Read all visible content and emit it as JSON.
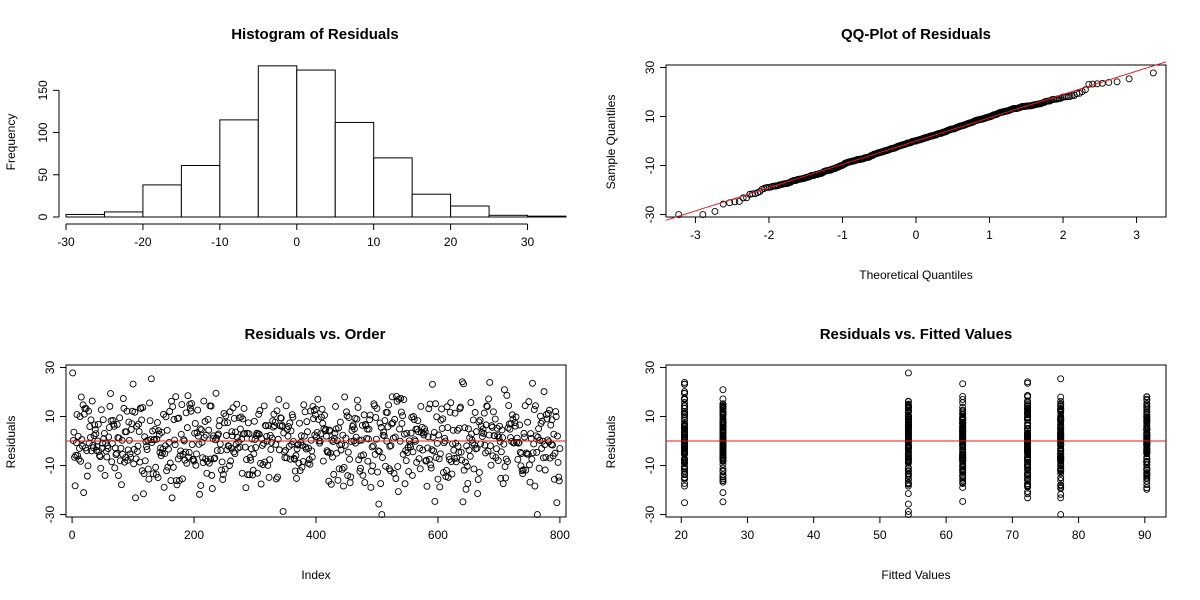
{
  "chart_data": [
    {
      "type": "bar",
      "title": "Histogram of Residuals",
      "xlabel": "",
      "ylabel": "Frequency",
      "bin_edges": [
        -30,
        -25,
        -20,
        -15,
        -10,
        -5,
        0,
        5,
        10,
        15,
        20,
        25,
        30,
        35
      ],
      "values": [
        3,
        6,
        38,
        61,
        115,
        179,
        174,
        112,
        70,
        27,
        13,
        2,
        1
      ],
      "xlim": [
        -30,
        35
      ],
      "ylim": [
        0,
        180
      ],
      "xticks": [
        -30,
        -20,
        -10,
        0,
        10,
        20,
        30
      ],
      "yticks": [
        0,
        50,
        100,
        150
      ],
      "grid": false
    },
    {
      "type": "scatter",
      "title": "QQ-Plot of Residuals",
      "xlabel": "Theoretical Quantiles",
      "ylabel": "Sample Quantiles",
      "n_points": 800,
      "residual_sd": 10,
      "reference_line": {
        "intercept": 0,
        "slope": 9.5,
        "color": "#e31a1c"
      },
      "xlim": [
        -3.4,
        3.4
      ],
      "ylim": [
        -31,
        31
      ],
      "xticks": [
        -3,
        -2,
        -1,
        0,
        1,
        2,
        3
      ],
      "yticks": [
        -30,
        -10,
        10,
        30
      ],
      "grid": false
    },
    {
      "type": "scatter",
      "title": "Residuals vs. Order",
      "xlabel": "Index",
      "ylabel": "Residuals",
      "x_range": [
        1,
        800
      ],
      "residual_sd": 10,
      "reference_line": {
        "y": 0,
        "color": "#e31a1c"
      },
      "xlim": [
        -10,
        810
      ],
      "ylim": [
        -31,
        31
      ],
      "xticks": [
        0,
        200,
        400,
        600,
        800
      ],
      "yticks": [
        -30,
        -10,
        10,
        30
      ],
      "grid": false
    },
    {
      "type": "scatter",
      "title": "Residuals vs. Fitted Values",
      "xlabel": "Fitted Values",
      "ylabel": "Residuals",
      "fitted_groups": [
        20.5,
        26.3,
        54.3,
        62.5,
        72.3,
        77.3,
        90.3
      ],
      "residual_sd": 10,
      "reference_line": {
        "y": 0,
        "color": "#e31a1c"
      },
      "xlim": [
        17.7,
        93.2
      ],
      "ylim": [
        -31,
        31
      ],
      "xticks": [
        20,
        30,
        40,
        50,
        60,
        70,
        80,
        90
      ],
      "yticks": [
        -30,
        -10,
        10,
        30
      ],
      "grid": false
    }
  ]
}
